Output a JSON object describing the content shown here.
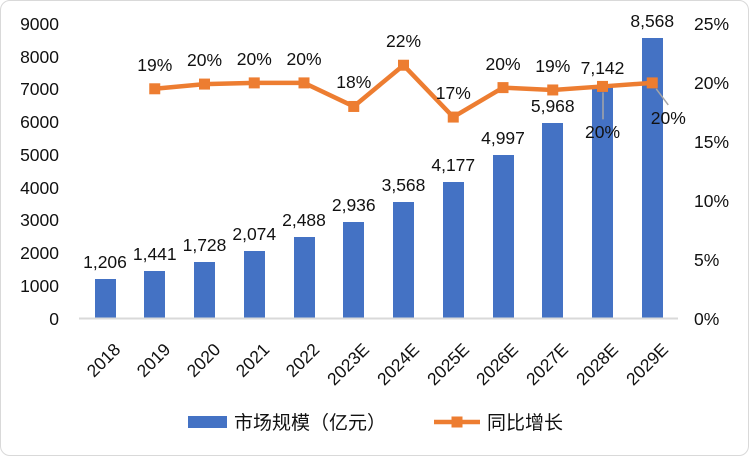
{
  "chart": {
    "type": "combo-bar-line",
    "categories": [
      "2018",
      "2019",
      "2020",
      "2021",
      "2022",
      "2023E",
      "2024E",
      "2025E",
      "2026E",
      "2027E",
      "2028E",
      "2029E"
    ],
    "bar_series": {
      "name": "市场规模（亿元）",
      "color": "#4472C4",
      "values": [
        1206,
        1441,
        1728,
        2074,
        2488,
        2936,
        3568,
        4177,
        4997,
        5968,
        7142,
        8568
      ],
      "labels": [
        "1,206",
        "1,441",
        "1,728",
        "2,074",
        "2,488",
        "2,936",
        "3,568",
        "4,177",
        "4,997",
        "5,968",
        "7,142",
        "8,568"
      ]
    },
    "line_series": {
      "name": "同比增长",
      "color": "#ED7D31",
      "start_index": 1,
      "values": [
        19.5,
        19.9,
        20.0,
        20.0,
        18.0,
        21.5,
        17.1,
        19.6,
        19.4,
        19.7,
        20.0
      ],
      "labels": [
        "19%",
        "20%",
        "20%",
        "20%",
        "18%",
        "22%",
        "17%",
        "20%",
        "19%",
        "20%",
        "20%"
      ]
    },
    "left_axis": {
      "min": 0,
      "max": 9000,
      "step": 1000,
      "ticks": [
        "9000",
        "8000",
        "7000",
        "6000",
        "5000",
        "4000",
        "3000",
        "2000",
        "1000",
        "0"
      ]
    },
    "right_axis": {
      "min": 0,
      "max": 25,
      "step": 5,
      "ticks": [
        "25%",
        "20%",
        "15%",
        "10%",
        "5%",
        "0%"
      ]
    },
    "colors": {
      "axis_line": "#D9D9D9",
      "leader_line": "#A6A6A6",
      "text": "#111111"
    }
  }
}
